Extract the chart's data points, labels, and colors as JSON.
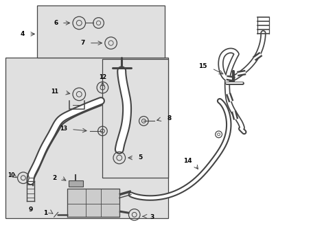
{
  "background_color": "#ffffff",
  "line_color": "#444444",
  "box_bg": "#e0e0e0",
  "figsize": [
    4.89,
    3.6
  ],
  "dpi": 100,
  "xlim": [
    0,
    10
  ],
  "ylim": [
    0,
    7.35
  ]
}
